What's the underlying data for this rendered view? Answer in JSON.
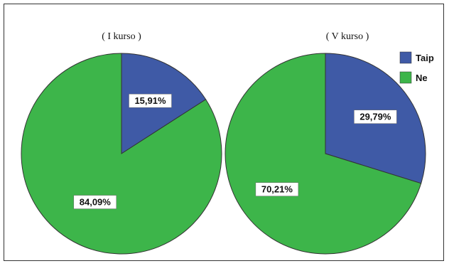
{
  "chart_data": [
    {
      "type": "pie",
      "title": "( I kurso )",
      "categories": [
        "Taip",
        "Ne"
      ],
      "values": [
        15.91,
        84.09
      ],
      "labels": [
        "15,91%",
        "84,09%"
      ]
    },
    {
      "type": "pie",
      "title": "( V kurso )",
      "categories": [
        "Taip",
        "Ne"
      ],
      "values": [
        29.79,
        70.21
      ],
      "labels": [
        "29,79%",
        "70,21%"
      ]
    }
  ],
  "legend": {
    "placement": "top-right",
    "items": [
      {
        "label": "Taip",
        "color": "#3f5aa6"
      },
      {
        "label": "Ne",
        "color": "#3db54a"
      }
    ]
  },
  "colors": {
    "Taip": "#3f5aa6",
    "Ne": "#3db54a",
    "edge": "#333333",
    "label_bg": "#ffffff"
  }
}
